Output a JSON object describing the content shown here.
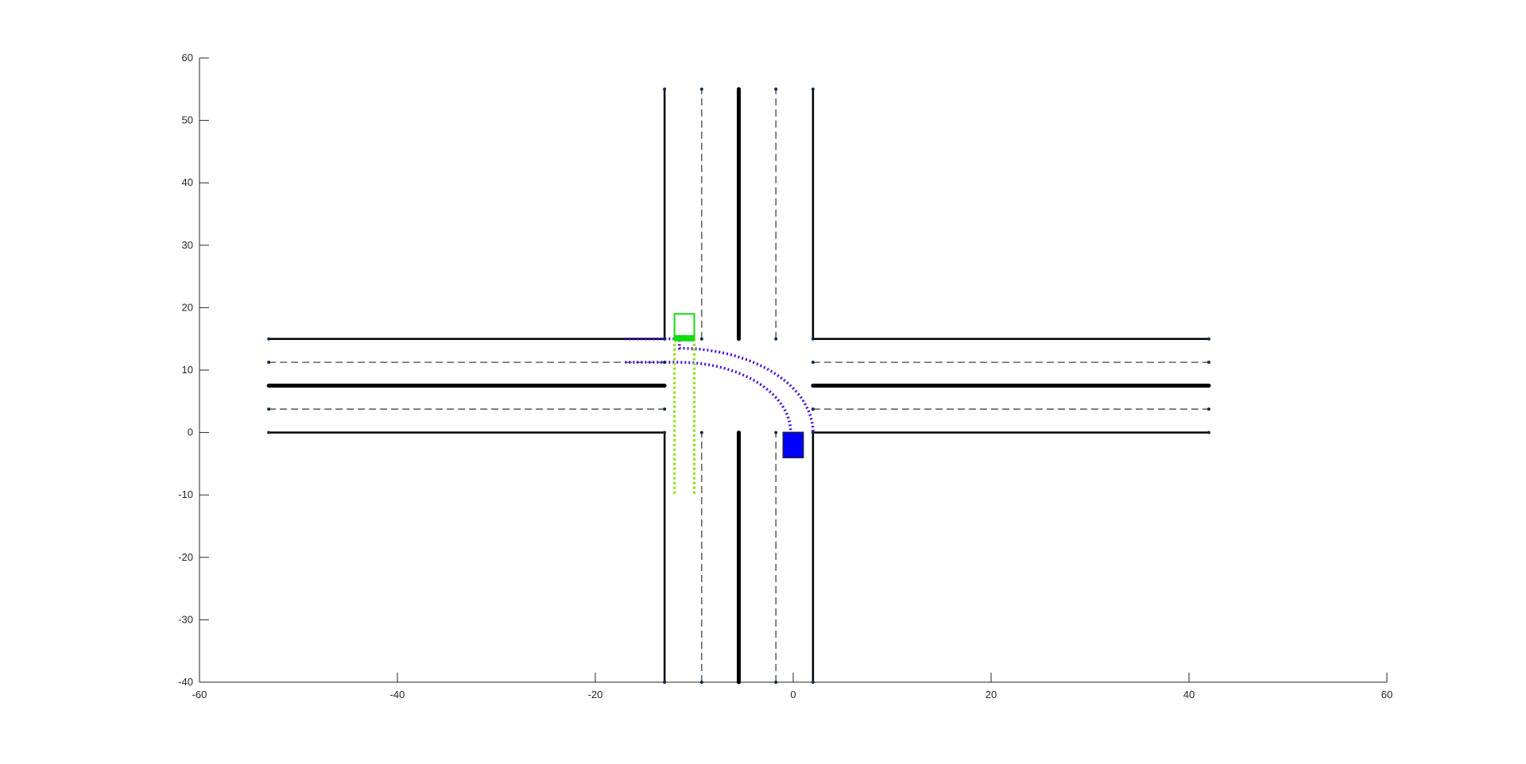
{
  "chart_data": {
    "type": "scatter",
    "title": "",
    "xlabel": "",
    "ylabel": "",
    "xlim": [
      -60,
      60
    ],
    "ylim": [
      -40,
      60
    ],
    "grid": false,
    "x_ticks": [
      -60,
      -40,
      -20,
      0,
      20,
      40,
      60
    ],
    "y_ticks": [
      -40,
      -30,
      -20,
      -10,
      0,
      10,
      20,
      30,
      40,
      50,
      60
    ],
    "x_tick_labels": [
      "-60",
      "-40",
      "-20",
      "0",
      "20",
      "40",
      "60"
    ],
    "y_tick_labels": [
      "-40",
      "-30",
      "-20",
      "-10",
      "0",
      "10",
      "20",
      "30",
      "40",
      "50",
      "60"
    ],
    "colors": {
      "road_edge": "#000000",
      "lane_divider": "#333333",
      "node": "#0b2b4a",
      "left_turn_path": "#4b0fd6",
      "straight_path": "#9bdf2a",
      "ego_vehicle_outline": "#11dd11",
      "ego_vehicle_front": "#11dd11",
      "other_vehicle": "#0000ff"
    },
    "road_edges": [
      {
        "id": "north-left-edge",
        "x": [
          -13,
          -13
        ],
        "y": [
          15,
          55
        ]
      },
      {
        "id": "north-right-edge",
        "x": [
          2,
          2
        ],
        "y": [
          15,
          55
        ]
      },
      {
        "id": "south-left-edge",
        "x": [
          -13,
          -13
        ],
        "y": [
          -40,
          0
        ]
      },
      {
        "id": "south-right-edge",
        "x": [
          2,
          2
        ],
        "y": [
          -40,
          0
        ]
      },
      {
        "id": "west-top-edge",
        "x": [
          -53,
          -13
        ],
        "y": [
          15,
          15
        ]
      },
      {
        "id": "west-bottom-edge",
        "x": [
          -53,
          -13
        ],
        "y": [
          0,
          0
        ]
      },
      {
        "id": "east-top-edge",
        "x": [
          2,
          42
        ],
        "y": [
          15,
          15
        ]
      },
      {
        "id": "east-bottom-edge",
        "x": [
          2,
          42
        ],
        "y": [
          0,
          0
        ]
      }
    ],
    "center_lines": [
      {
        "id": "north-center-line",
        "x": [
          -5.5,
          -5.5
        ],
        "y": [
          15,
          55
        ]
      },
      {
        "id": "south-center-line",
        "x": [
          -5.5,
          -5.5
        ],
        "y": [
          -40,
          0
        ]
      },
      {
        "id": "west-center-line",
        "x": [
          -53,
          -13
        ],
        "y": [
          7.5,
          7.5
        ]
      },
      {
        "id": "east-center-line",
        "x": [
          2,
          42
        ],
        "y": [
          7.5,
          7.5
        ]
      }
    ],
    "lane_dividers": [
      {
        "id": "north-lane-divider-left",
        "x": [
          -9.25,
          -9.25
        ],
        "y": [
          15,
          55
        ]
      },
      {
        "id": "north-lane-divider-right",
        "x": [
          -1.75,
          -1.75
        ],
        "y": [
          15,
          55
        ]
      },
      {
        "id": "south-lane-divider-left",
        "x": [
          -9.25,
          -9.25
        ],
        "y": [
          -40,
          0
        ]
      },
      {
        "id": "south-lane-divider-right",
        "x": [
          -1.75,
          -1.75
        ],
        "y": [
          -40,
          0
        ]
      },
      {
        "id": "west-lane-divider-top",
        "x": [
          -53,
          -13
        ],
        "y": [
          11.25,
          11.25
        ]
      },
      {
        "id": "west-lane-divider-bottom",
        "x": [
          -53,
          -13
        ],
        "y": [
          3.75,
          3.75
        ]
      },
      {
        "id": "east-lane-divider-top",
        "x": [
          2,
          42
        ],
        "y": [
          11.25,
          11.25
        ]
      },
      {
        "id": "east-lane-divider-bottom",
        "x": [
          2,
          42
        ],
        "y": [
          3.75,
          3.75
        ]
      }
    ],
    "nodes": [
      [
        -13,
        55
      ],
      [
        -9.25,
        55
      ],
      [
        -1.75,
        55
      ],
      [
        2,
        55
      ],
      [
        -13,
        15
      ],
      [
        -9.25,
        15
      ],
      [
        -1.75,
        15
      ],
      [
        2,
        15
      ],
      [
        -13,
        0
      ],
      [
        -9.25,
        0
      ],
      [
        -1.75,
        0
      ],
      [
        2,
        0
      ],
      [
        -13,
        -40
      ],
      [
        -9.25,
        -40
      ],
      [
        -1.75,
        -40
      ],
      [
        2,
        -40
      ],
      [
        -53,
        15
      ],
      [
        -53,
        11.25
      ],
      [
        -53,
        3.75
      ],
      [
        -53,
        0
      ],
      [
        -13,
        11.25
      ],
      [
        -13,
        3.75
      ],
      [
        42,
        15
      ],
      [
        42,
        11.25
      ],
      [
        42,
        3.75
      ],
      [
        42,
        0
      ],
      [
        2,
        11.25
      ],
      [
        2,
        3.75
      ]
    ],
    "series": [
      {
        "id": "left-turn-path-outer",
        "color": "#4b0fd6",
        "style": "dotted",
        "straight": {
          "x": [
            -17,
            -11.5
          ],
          "y": [
            15,
            15
          ]
        },
        "arc": {
          "cx": -11.5,
          "cy": 0,
          "r": 13.5,
          "from_deg": 90,
          "to_deg": 0
        }
      },
      {
        "id": "left-turn-path-inner",
        "color": "#4b0fd6",
        "style": "dotted",
        "straight": {
          "x": [
            -17,
            -11.5
          ],
          "y": [
            11.25,
            11.25
          ]
        },
        "arc": {
          "cx": -11.5,
          "cy": 0,
          "r": 11.25,
          "from_deg": 90,
          "to_deg": -2
        }
      },
      {
        "id": "straight-path-left",
        "color": "#9bdf2a",
        "style": "dotted",
        "x": [
          -12,
          -12
        ],
        "y": [
          15,
          -10
        ]
      },
      {
        "id": "straight-path-right",
        "color": "#9bdf2a",
        "style": "dotted",
        "x": [
          -10,
          -10
        ],
        "y": [
          15,
          -10
        ]
      }
    ],
    "vehicles": [
      {
        "id": "ego-vehicle",
        "outline": "#11dd11",
        "fill": "none",
        "x": [
          -12,
          -10
        ],
        "y": [
          15,
          19
        ],
        "front_bar_y": [
          14.6,
          15.6
        ]
      },
      {
        "id": "other-vehicle",
        "outline": "#1a1a6b",
        "fill": "#0000ff",
        "x": [
          -1,
          1
        ],
        "y": [
          -4,
          0
        ]
      }
    ]
  }
}
